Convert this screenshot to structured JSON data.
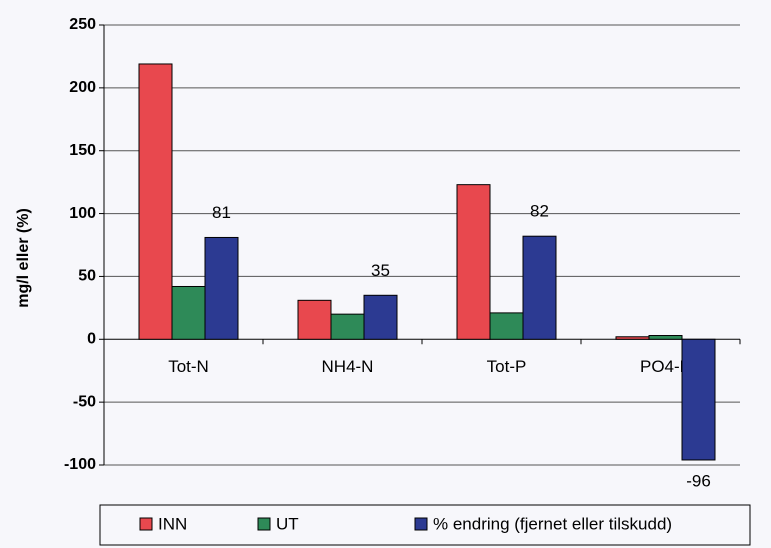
{
  "chart_data": {
    "type": "bar",
    "y_label": "mg/l eller (%)",
    "categories": [
      "Tot-N",
      "NH4-N",
      "Tot-P",
      "PO4-P"
    ],
    "series": [
      {
        "name": "INN",
        "color": "#e8484e",
        "values": [
          219,
          31,
          123,
          2
        ]
      },
      {
        "name": "UT",
        "color": "#2e8a58",
        "values": [
          42,
          20,
          21,
          3
        ]
      },
      {
        "name": "% endring (fjernet eller tilskudd)",
        "color": "#2c3a92",
        "values": [
          81,
          35,
          82,
          -96
        ],
        "data_labels": true
      }
    ],
    "ylim": [
      -100,
      250
    ],
    "yticks": [
      -100,
      -50,
      0,
      50,
      100,
      150,
      200,
      250
    ],
    "grid": true
  }
}
